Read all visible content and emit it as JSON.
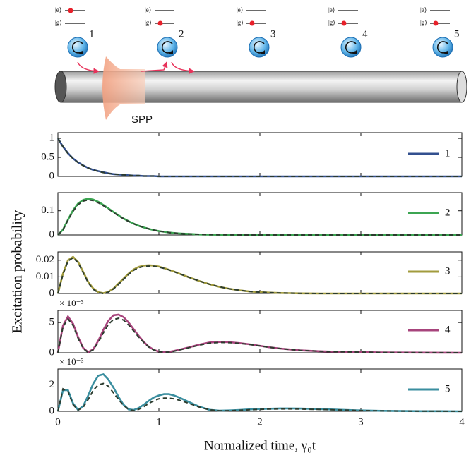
{
  "diagram": {
    "excited_label": "|e⟩",
    "ground_label": "|g⟩",
    "spp_label": "SPP",
    "atoms": [
      {
        "label": "1",
        "state": "excited"
      },
      {
        "label": "2",
        "state": "ground"
      },
      {
        "label": "3",
        "state": "ground"
      },
      {
        "label": "4",
        "state": "ground"
      },
      {
        "label": "5",
        "state": "ground"
      }
    ]
  },
  "figure": {
    "ylabel": "Excitation probability"
  },
  "chart_data": [
    {
      "type": "line",
      "xlim": [
        0,
        4
      ],
      "xticks": [
        0,
        1,
        2,
        3,
        4
      ],
      "ylim": [
        0,
        1.15
      ],
      "yticks": [
        0,
        0.5,
        1
      ],
      "legend": "right",
      "x": [
        0,
        0.05,
        0.1,
        0.15,
        0.2,
        0.25,
        0.3,
        0.35,
        0.4,
        0.45,
        0.5,
        0.55,
        0.6,
        0.65,
        0.7,
        0.75,
        0.8,
        0.85,
        0.9,
        0.95,
        1,
        1.05,
        1.1,
        1.15,
        1.2,
        1.3,
        1.4,
        1.5,
        1.6,
        1.7,
        1.8,
        1.9,
        2,
        2.1,
        2.2,
        2.3,
        2.4,
        2.6,
        2.8,
        3,
        3.2,
        3.4,
        3.6,
        3.8,
        4
      ],
      "series": [
        {
          "name": "1",
          "color": "#33508f",
          "values": [
            1,
            0.78,
            0.61,
            0.47,
            0.37,
            0.29,
            0.22,
            0.17,
            0.14,
            0.11,
            0.08,
            0.06,
            0.05,
            0.04,
            0.03,
            0.02,
            0.02,
            0.01,
            0.01,
            0.01,
            0,
            0,
            0,
            0,
            0,
            0,
            0,
            0,
            0,
            0,
            0,
            0,
            0,
            0,
            0,
            0,
            0,
            0,
            0,
            0,
            0,
            0,
            0,
            0,
            0
          ]
        },
        {
          "color": "#2b3b2e",
          "dash": true,
          "values": [
            1,
            0.78,
            0.6,
            0.47,
            0.36,
            0.28,
            0.22,
            0.17,
            0.13,
            0.1,
            0.08,
            0.06,
            0.05,
            0.04,
            0.03,
            0.02,
            0.02,
            0.01,
            0.01,
            0.01,
            0,
            0,
            0,
            0,
            0,
            0,
            0,
            0,
            0,
            0,
            0,
            0,
            0,
            0,
            0,
            0,
            0,
            0,
            0,
            0,
            0,
            0,
            0,
            0,
            0
          ]
        }
      ]
    },
    {
      "type": "line",
      "xlim": [
        0,
        4
      ],
      "xticks": [
        0,
        1,
        2,
        3,
        4
      ],
      "ylim": [
        0,
        0.175
      ],
      "yticks": [
        0,
        0.1
      ],
      "legend": "right",
      "x": [
        0,
        0.05,
        0.1,
        0.15,
        0.2,
        0.25,
        0.3,
        0.35,
        0.4,
        0.45,
        0.5,
        0.55,
        0.6,
        0.65,
        0.7,
        0.75,
        0.8,
        0.85,
        0.9,
        0.95,
        1,
        1.05,
        1.1,
        1.15,
        1.2,
        1.3,
        1.4,
        1.5,
        1.6,
        1.7,
        1.8,
        1.9,
        2,
        2.1,
        2.2,
        2.3,
        2.4,
        2.6,
        2.8,
        3,
        3.2,
        3.4,
        3.6,
        3.8,
        4
      ],
      "series": [
        {
          "name": "2",
          "color": "#3ca552",
          "values": [
            0,
            0.022,
            0.063,
            0.102,
            0.13,
            0.145,
            0.15,
            0.146,
            0.137,
            0.124,
            0.11,
            0.095,
            0.081,
            0.068,
            0.057,
            0.047,
            0.038,
            0.031,
            0.025,
            0.02,
            0.016,
            0.013,
            0.01,
            0.008,
            0.006,
            0.004,
            0.002,
            0.0013,
            0.001,
            0.0005,
            0,
            0,
            0,
            0,
            0,
            0,
            0,
            0,
            0,
            0,
            0,
            0,
            0,
            0,
            0
          ]
        },
        {
          "color": "#2b3b2e",
          "dash": true,
          "values": [
            0,
            0.021,
            0.061,
            0.098,
            0.125,
            0.14,
            0.145,
            0.142,
            0.133,
            0.121,
            0.107,
            0.093,
            0.079,
            0.067,
            0.056,
            0.046,
            0.038,
            0.031,
            0.025,
            0.02,
            0.016,
            0.013,
            0.01,
            0.008,
            0.006,
            0.004,
            0.002,
            0.0013,
            0.001,
            0.0005,
            0,
            0,
            0,
            0,
            0,
            0,
            0,
            0,
            0,
            0,
            0,
            0,
            0,
            0,
            0
          ]
        }
      ]
    },
    {
      "type": "line",
      "xlim": [
        0,
        4
      ],
      "xticks": [
        0,
        1,
        2,
        3,
        4
      ],
      "ylim": [
        0,
        0.025
      ],
      "yticks": [
        0,
        0.01,
        0.02
      ],
      "legend": "right",
      "x": [
        0,
        0.05,
        0.1,
        0.15,
        0.2,
        0.25,
        0.3,
        0.35,
        0.4,
        0.45,
        0.5,
        0.55,
        0.6,
        0.65,
        0.7,
        0.75,
        0.8,
        0.85,
        0.9,
        0.95,
        1,
        1.05,
        1.1,
        1.15,
        1.2,
        1.3,
        1.4,
        1.5,
        1.6,
        1.7,
        1.8,
        1.9,
        2,
        2.1,
        2.2,
        2.3,
        2.4,
        2.6,
        2.8,
        3,
        3.2,
        3.4,
        3.6,
        3.8,
        4
      ],
      "series": [
        {
          "name": "3",
          "color": "#a29b3d",
          "values": [
            0,
            0.012,
            0.02,
            0.022,
            0.019,
            0.013,
            0.007,
            0.003,
            0.0008,
            0.0002,
            0.001,
            0.003,
            0.006,
            0.009,
            0.012,
            0.0145,
            0.016,
            0.0168,
            0.017,
            0.0168,
            0.0162,
            0.0153,
            0.0143,
            0.0132,
            0.012,
            0.0097,
            0.0075,
            0.0056,
            0.004,
            0.0028,
            0.0019,
            0.0012,
            0.0008,
            0.0005,
            0.0003,
            0.0002,
            0.0001,
            0,
            0,
            0,
            0,
            0,
            0,
            0,
            0
          ]
        },
        {
          "color": "#2b3b2e",
          "dash": true,
          "values": [
            0,
            0.0115,
            0.0195,
            0.0215,
            0.0185,
            0.0125,
            0.0065,
            0.0025,
            0.0005,
            0,
            0.0008,
            0.0027,
            0.0055,
            0.0085,
            0.0115,
            0.014,
            0.0155,
            0.0163,
            0.0165,
            0.0164,
            0.0159,
            0.0151,
            0.0142,
            0.0131,
            0.012,
            0.0097,
            0.0075,
            0.0056,
            0.004,
            0.0028,
            0.0019,
            0.0012,
            0.0008,
            0.0005,
            0.0003,
            0.0002,
            0.0001,
            0,
            0,
            0,
            0,
            0,
            0,
            0,
            0
          ]
        }
      ]
    },
    {
      "type": "line",
      "xlim": [
        0,
        4
      ],
      "xticks": [
        0,
        1,
        2,
        3,
        4
      ],
      "ylim": [
        0,
        7
      ],
      "yticks": [
        0,
        5
      ],
      "legend": "right",
      "multiplier": "× 10⁻³",
      "x": [
        0,
        0.05,
        0.1,
        0.15,
        0.2,
        0.25,
        0.3,
        0.35,
        0.4,
        0.45,
        0.5,
        0.55,
        0.6,
        0.65,
        0.7,
        0.75,
        0.8,
        0.85,
        0.9,
        0.95,
        1,
        1.05,
        1.1,
        1.15,
        1.2,
        1.3,
        1.4,
        1.5,
        1.6,
        1.7,
        1.8,
        1.9,
        2,
        2.1,
        2.2,
        2.3,
        2.4,
        2.6,
        2.8,
        3,
        3.2,
        3.4,
        3.6,
        3.8,
        4
      ],
      "series": [
        {
          "name": "4",
          "color": "#a7447c",
          "values": [
            0,
            4.5,
            6,
            4.8,
            2.6,
            0.8,
            0.1,
            0.6,
            2,
            3.8,
            5.3,
            6.2,
            6.3,
            5.9,
            5,
            3.9,
            2.8,
            1.8,
            1,
            0.5,
            0.2,
            0.1,
            0.15,
            0.3,
            0.5,
            0.9,
            1.35,
            1.7,
            1.8,
            1.75,
            1.6,
            1.4,
            1.15,
            0.9,
            0.7,
            0.55,
            0.4,
            0.25,
            0.15,
            0.1,
            0.05,
            0.03,
            0.02,
            0.01,
            0
          ]
        },
        {
          "color": "#2b3b2e",
          "dash": true,
          "values": [
            0,
            4.3,
            5.6,
            4.5,
            2.4,
            0.7,
            0.05,
            0.5,
            1.7,
            3.3,
            4.7,
            5.5,
            5.7,
            5.4,
            4.6,
            3.6,
            2.6,
            1.7,
            0.95,
            0.45,
            0.18,
            0.08,
            0.12,
            0.25,
            0.45,
            0.85,
            1.25,
            1.6,
            1.7,
            1.68,
            1.55,
            1.37,
            1.13,
            0.9,
            0.7,
            0.54,
            0.4,
            0.25,
            0.15,
            0.1,
            0.05,
            0.03,
            0.02,
            0.01,
            0
          ]
        }
      ]
    },
    {
      "type": "line",
      "xlim": [
        0,
        4
      ],
      "xticks": [
        0,
        1,
        2,
        3,
        4
      ],
      "ylim": [
        0,
        3.2
      ],
      "yticks": [
        0,
        2
      ],
      "legend": "right",
      "multiplier": "× 10⁻³",
      "show_xtick_labels": true,
      "xlabel": "Normalized time, γ₀t",
      "x": [
        0,
        0.05,
        0.1,
        0.15,
        0.2,
        0.25,
        0.3,
        0.35,
        0.4,
        0.45,
        0.5,
        0.55,
        0.6,
        0.65,
        0.7,
        0.75,
        0.8,
        0.85,
        0.9,
        0.95,
        1,
        1.05,
        1.1,
        1.15,
        1.2,
        1.3,
        1.4,
        1.5,
        1.6,
        1.7,
        1.8,
        1.9,
        2,
        2.1,
        2.2,
        2.3,
        2.4,
        2.6,
        2.8,
        3,
        3.2,
        3.4,
        3.6,
        3.8,
        4
      ],
      "series": [
        {
          "name": "5",
          "color": "#3a8e9f",
          "values": [
            0,
            1.6,
            1.6,
            0.6,
            0.1,
            0.4,
            1.2,
            2.1,
            2.7,
            2.8,
            2.4,
            1.8,
            1.1,
            0.5,
            0.15,
            0.1,
            0.25,
            0.5,
            0.8,
            1.05,
            1.2,
            1.3,
            1.3,
            1.2,
            1.05,
            0.7,
            0.35,
            0.12,
            0.05,
            0.07,
            0.1,
            0.15,
            0.18,
            0.2,
            0.22,
            0.22,
            0.21,
            0.17,
            0.12,
            0.07,
            0.04,
            0.02,
            0.01,
            0.01,
            0
          ]
        },
        {
          "color": "#2b3b2e",
          "dash": true,
          "values": [
            0,
            1.7,
            1.5,
            0.5,
            0.1,
            0.3,
            0.9,
            1.6,
            2,
            2.1,
            1.9,
            1.4,
            0.9,
            0.45,
            0.15,
            0.05,
            0.15,
            0.35,
            0.6,
            0.8,
            0.95,
            1,
            1,
            0.95,
            0.85,
            0.6,
            0.32,
            0.12,
            0.04,
            0.05,
            0.08,
            0.12,
            0.15,
            0.17,
            0.18,
            0.18,
            0.17,
            0.14,
            0.1,
            0.06,
            0.03,
            0.02,
            0.01,
            0.01,
            0
          ]
        }
      ]
    }
  ]
}
